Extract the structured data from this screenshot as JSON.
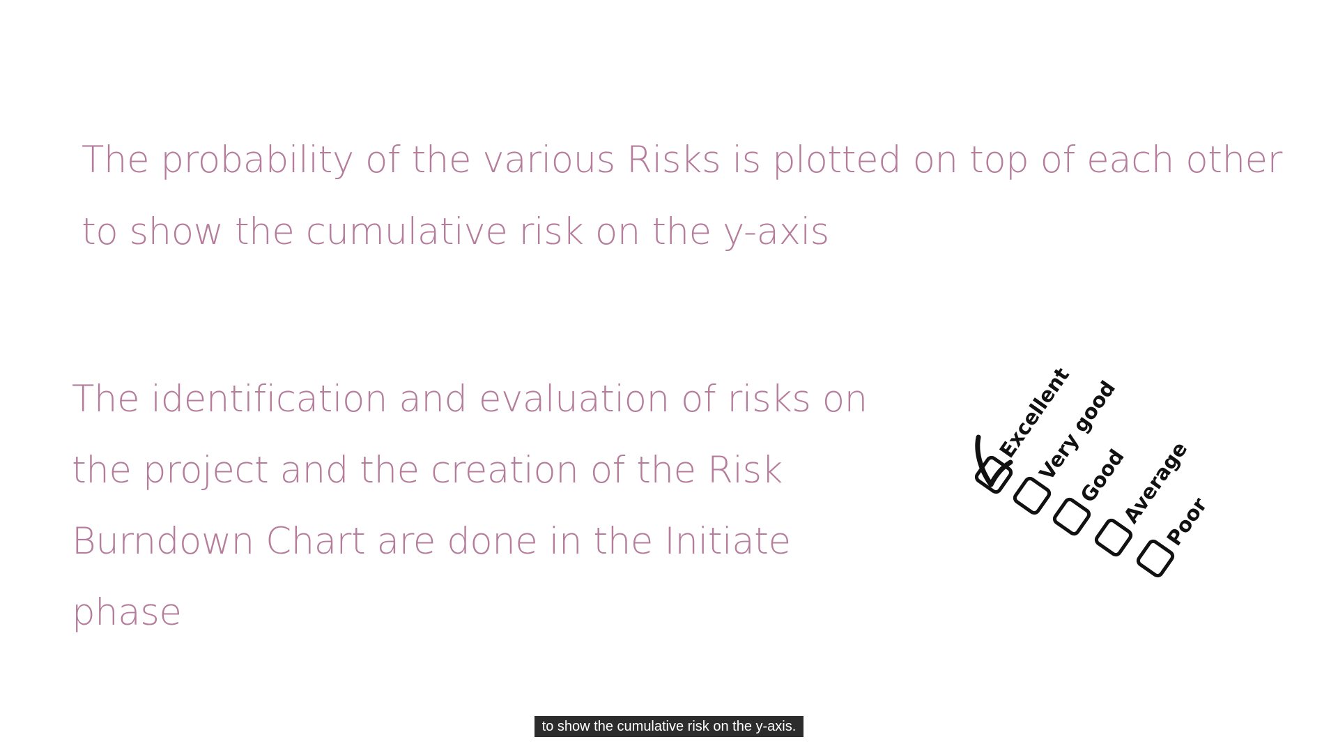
{
  "colors": {
    "slide_text": "#b57d9b",
    "caption_bg": "#2c2c2c",
    "caption_text": "#ffffff",
    "graphic_ink": "#111111"
  },
  "slide": {
    "top_paragraph": {
      "lines": [
        "The probability of the various Risks is plotted on top of each other",
        "to show the cumulative risk on the y-axis"
      ]
    },
    "bottom_paragraph": {
      "lines": [
        "The identification and evaluation of risks on",
        "the project and the creation of the Risk",
        "Burndown Chart are done in the Initiate",
        "phase"
      ]
    },
    "rating_graphic": {
      "items": [
        {
          "label": "Excellent",
          "checked": true,
          "icon": "checkbox-checked-icon"
        },
        {
          "label": "Very good",
          "checked": false,
          "icon": "checkbox-icon"
        },
        {
          "label": "Good",
          "checked": false,
          "icon": "checkbox-icon"
        },
        {
          "label": "Average",
          "checked": false,
          "icon": "checkbox-icon"
        },
        {
          "label": "Poor",
          "checked": false,
          "icon": "checkbox-icon"
        }
      ]
    }
  },
  "caption": {
    "text": "to show the cumulative risk on the y-axis."
  }
}
